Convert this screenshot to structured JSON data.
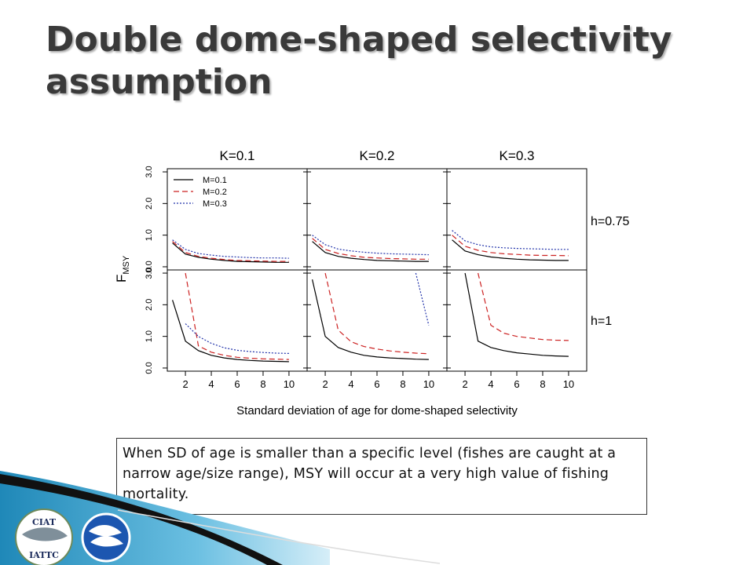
{
  "slide": {
    "title": "Double dome-shaped selectivity assumption",
    "note": "When SD of age is smaller than a specific level (fishes are caught at a narrow age/size range), MSY will occur at a very high value of fishing mortality."
  },
  "logos": {
    "left": {
      "icon": "ciat-iattc-logo",
      "text_top": "CIAT",
      "text_bottom": "IATTC"
    },
    "right": {
      "icon": "noaa-logo"
    }
  },
  "chart_data": {
    "type": "line",
    "xlabel": "Standard deviation of age for dome-shaped selectivity",
    "ylabel": "F",
    "ylabel_sub": "MSY",
    "x": [
      1,
      2,
      3,
      4,
      5,
      6,
      7,
      8,
      9,
      10
    ],
    "xticks": [
      2,
      4,
      6,
      8,
      10
    ],
    "xlim": [
      0.6,
      11.4
    ],
    "ylim": [
      -0.1,
      3.1
    ],
    "yticks": [
      0.0,
      1.0,
      2.0,
      3.0
    ],
    "ytick_labels": [
      "0.0",
      "1.0",
      "2.0",
      "3.0"
    ],
    "columns": [
      "K=0.1",
      "K=0.2",
      "K=0.3"
    ],
    "rows": [
      "h=0.75",
      "h=1"
    ],
    "legend": {
      "placement": "top-left",
      "entries": [
        "M=0.1",
        "M=0.2",
        "M=0.3"
      ]
    },
    "series_styles": [
      {
        "name": "M=0.1",
        "color": "#000000",
        "dash": ""
      },
      {
        "name": "M=0.2",
        "color": "#cc2222",
        "dash": "7,4"
      },
      {
        "name": "M=0.3",
        "color": "#2233aa",
        "dash": "2,2"
      }
    ],
    "panels": [
      {
        "row": 0,
        "col": 0,
        "series": [
          {
            "name": "M=0.1",
            "values": [
              0.75,
              0.4,
              0.3,
              0.24,
              0.2,
              0.17,
              0.16,
              0.15,
              0.14,
              0.14
            ]
          },
          {
            "name": "M=0.2",
            "values": [
              0.8,
              0.45,
              0.33,
              0.27,
              0.23,
              0.2,
              0.19,
              0.18,
              0.17,
              0.17
            ]
          },
          {
            "name": "M=0.3",
            "values": [
              0.85,
              0.55,
              0.42,
              0.37,
              0.33,
              0.31,
              0.29,
              0.28,
              0.28,
              0.27
            ]
          }
        ]
      },
      {
        "row": 0,
        "col": 1,
        "series": [
          {
            "name": "M=0.1",
            "values": [
              0.8,
              0.45,
              0.33,
              0.27,
              0.23,
              0.2,
              0.19,
              0.18,
              0.17,
              0.17
            ]
          },
          {
            "name": "M=0.2",
            "values": [
              0.9,
              0.55,
              0.42,
              0.35,
              0.3,
              0.28,
              0.26,
              0.25,
              0.24,
              0.24
            ]
          },
          {
            "name": "M=0.3",
            "values": [
              1.0,
              0.7,
              0.56,
              0.5,
              0.46,
              0.43,
              0.41,
              0.4,
              0.39,
              0.38
            ]
          }
        ]
      },
      {
        "row": 0,
        "col": 2,
        "series": [
          {
            "name": "M=0.1",
            "values": [
              0.85,
              0.5,
              0.38,
              0.31,
              0.27,
              0.24,
              0.22,
              0.21,
              0.2,
              0.2
            ]
          },
          {
            "name": "M=0.2",
            "values": [
              1.0,
              0.65,
              0.52,
              0.45,
              0.41,
              0.39,
              0.37,
              0.36,
              0.36,
              0.35
            ]
          },
          {
            "name": "M=0.3",
            "values": [
              1.15,
              0.82,
              0.7,
              0.63,
              0.6,
              0.58,
              0.57,
              0.56,
              0.55,
              0.55
            ]
          }
        ]
      },
      {
        "row": 1,
        "col": 0,
        "series": [
          {
            "name": "M=0.1",
            "values": [
              2.15,
              0.85,
              0.55,
              0.4,
              0.32,
              0.27,
              0.24,
              0.22,
              0.21,
              0.2
            ]
          },
          {
            "name": "M=0.2",
            "values": [
              null,
              3.0,
              0.7,
              0.5,
              0.4,
              0.34,
              0.31,
              0.29,
              0.28,
              0.27
            ]
          },
          {
            "name": "M=0.3",
            "values": [
              null,
              1.4,
              1.0,
              0.78,
              0.64,
              0.56,
              0.52,
              0.49,
              0.47,
              0.46
            ]
          }
        ]
      },
      {
        "row": 1,
        "col": 1,
        "series": [
          {
            "name": "M=0.1",
            "values": [
              2.8,
              1.0,
              0.65,
              0.5,
              0.4,
              0.35,
              0.32,
              0.3,
              0.28,
              0.27
            ]
          },
          {
            "name": "M=0.2",
            "values": [
              null,
              3.0,
              1.2,
              0.83,
              0.68,
              0.6,
              0.54,
              0.5,
              0.47,
              0.45
            ]
          },
          {
            "name": "M=0.3",
            "values": [
              null,
              null,
              null,
              null,
              null,
              null,
              null,
              null,
              3.0,
              1.35
            ]
          }
        ]
      },
      {
        "row": 1,
        "col": 2,
        "series": [
          {
            "name": "M=0.1",
            "values": [
              null,
              3.0,
              0.85,
              0.65,
              0.55,
              0.48,
              0.44,
              0.4,
              0.38,
              0.37
            ]
          },
          {
            "name": "M=0.2",
            "values": [
              null,
              null,
              3.0,
              1.35,
              1.1,
              1.0,
              0.95,
              0.9,
              0.88,
              0.87
            ]
          },
          {
            "name": "M=0.3",
            "values": [
              null,
              null,
              null,
              null,
              null,
              null,
              null,
              null,
              null,
              null
            ]
          }
        ]
      }
    ]
  }
}
